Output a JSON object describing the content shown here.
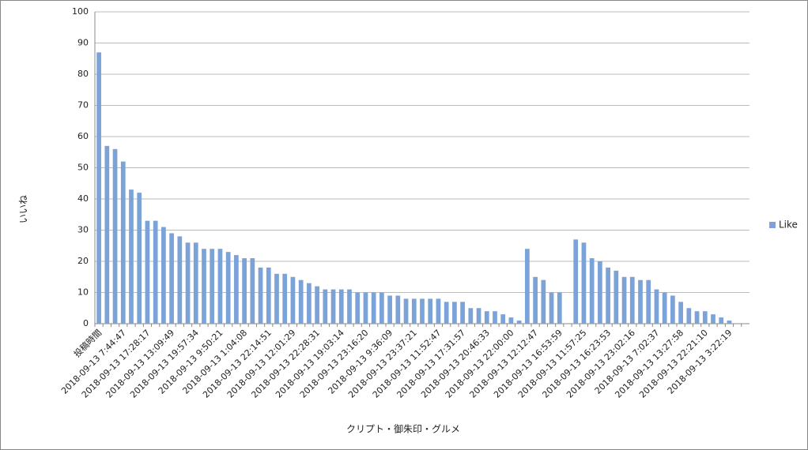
{
  "chart_data": {
    "type": "bar",
    "y_label": "いいね",
    "x_label": "クリプト・御朱印・グルメ",
    "categories": [
      "投稿時間",
      null,
      null,
      "2018-09-13 7:44:47",
      null,
      null,
      "2018-09-13 17:28:17",
      null,
      null,
      "2018-09-13 13:09:49",
      null,
      null,
      "2018-09-13 19:57:34",
      null,
      null,
      "2018-09-13 9:50:21",
      null,
      null,
      "2018-09-13 1:04:08",
      null,
      null,
      "2018-09-13 22:14:51",
      null,
      null,
      "2018-09-13 12:01:29",
      null,
      null,
      "2018-09-13 22:28:31",
      null,
      null,
      "2018-09-13 19:03:14",
      null,
      null,
      "2018-09-13 23:16:20",
      null,
      null,
      "2018-09-13 9:36:09",
      null,
      null,
      "2018-09-13 23:37:21",
      null,
      null,
      "2018-09-13 11:52:47",
      null,
      null,
      "2018-09-13 17:31:57",
      null,
      null,
      "2018-09-13 20:46:33",
      null,
      null,
      "2018-09-13 22:00:00",
      null,
      null,
      "2018-09-13 12:12:47",
      null,
      null,
      "2018-09-13 16:53:59",
      null,
      null,
      "2018-09-13 11:57:25",
      null,
      null,
      "2018-09-13 16:23:53",
      null,
      null,
      "2018-09-13 23:02:16",
      null,
      null,
      "2018-09-13 7:02:37",
      null,
      null,
      "2018-09-13 13:27:58",
      null,
      null,
      "2018-09-13 22:21:10",
      null,
      null,
      "2018-09-13 3:22:19",
      null,
      null
    ],
    "series": [
      {
        "name": "Like",
        "color": "#7ba3d8",
        "values": [
          87,
          57,
          56,
          52,
          43,
          42,
          33,
          33,
          31,
          29,
          28,
          26,
          26,
          24,
          24,
          24,
          23,
          22,
          21,
          21,
          18,
          18,
          16,
          16,
          15,
          14,
          13,
          12,
          11,
          11,
          11,
          11,
          10,
          10,
          10,
          10,
          9,
          9,
          8,
          8,
          8,
          8,
          8,
          7,
          7,
          7,
          5,
          5,
          4,
          4,
          3,
          2,
          1,
          24,
          15,
          14,
          10,
          10,
          0,
          27,
          26,
          21,
          20,
          18,
          17,
          15,
          15,
          14,
          14,
          11,
          10,
          9,
          7,
          5,
          4,
          4,
          3,
          2,
          1,
          0,
          0
        ]
      }
    ],
    "ylim": [
      0,
      100
    ],
    "yticks": [
      0,
      10,
      20,
      30,
      40,
      50,
      60,
      70,
      80,
      90,
      100
    ],
    "grid": true,
    "legend": "right"
  }
}
